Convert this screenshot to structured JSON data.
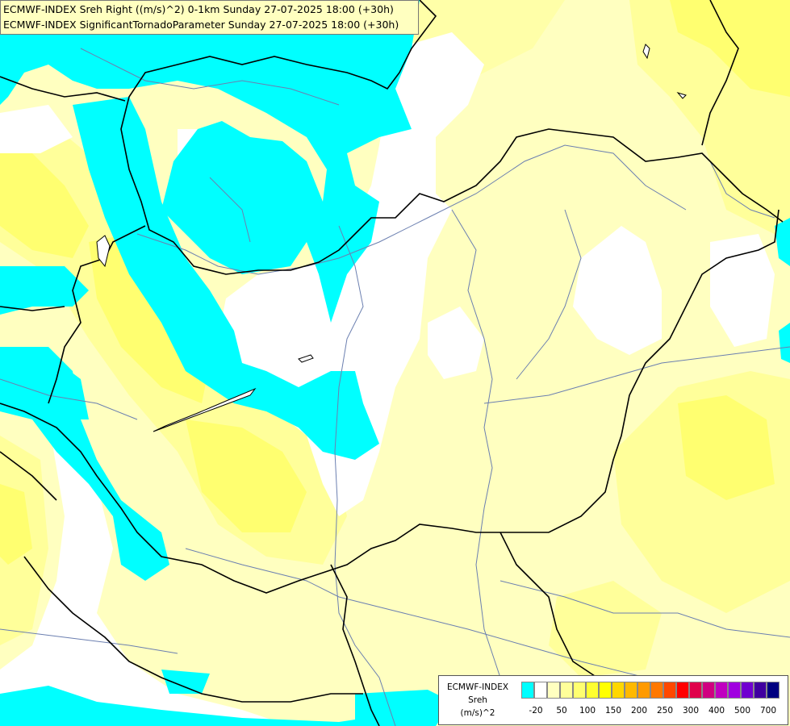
{
  "title": {
    "line1": "ECMWF-INDEX Sreh Right ((m/s)^2) 0-1km Sunday 27-07-2025 18:00 (+30h)",
    "line2": "ECMWF-INDEX SignificantTornadoParameter Sunday 27-07-2025 18:00 (+30h)"
  },
  "legend": {
    "source": "ECMWF-INDEX",
    "variable": "Sreh",
    "unit": "(m/s)^2",
    "colors": [
      "#00ffff",
      "#ffffff",
      "#ffffc0",
      "#ffff9a",
      "#ffff70",
      "#ffff30",
      "#ffff00",
      "#ffd700",
      "#ffb900",
      "#ff9a00",
      "#ff7800",
      "#ff4800",
      "#ff0000",
      "#e0004a",
      "#d00080",
      "#c000c0",
      "#a000e0",
      "#7000d0",
      "#4000a0",
      "#000080"
    ],
    "ticks": [
      {
        "label": "-20",
        "slot": 1
      },
      {
        "label": "50",
        "slot": 3
      },
      {
        "label": "100",
        "slot": 5
      },
      {
        "label": "150",
        "slot": 7
      },
      {
        "label": "200",
        "slot": 9
      },
      {
        "label": "250",
        "slot": 11
      },
      {
        "label": "300",
        "slot": 13
      },
      {
        "label": "400",
        "slot": 15
      },
      {
        "label": "500",
        "slot": 17
      },
      {
        "label": "700",
        "slot": 19
      }
    ]
  },
  "map_colors": {
    "cyan": "#00ffff",
    "white": "#ffffff",
    "pale_yellow": "#ffffc0",
    "light_yellow": "#ffff9a",
    "yellow": "#ffff70",
    "bright_yellow": "#ffff30",
    "river": "#6b7fb0",
    "border": "#000000"
  }
}
